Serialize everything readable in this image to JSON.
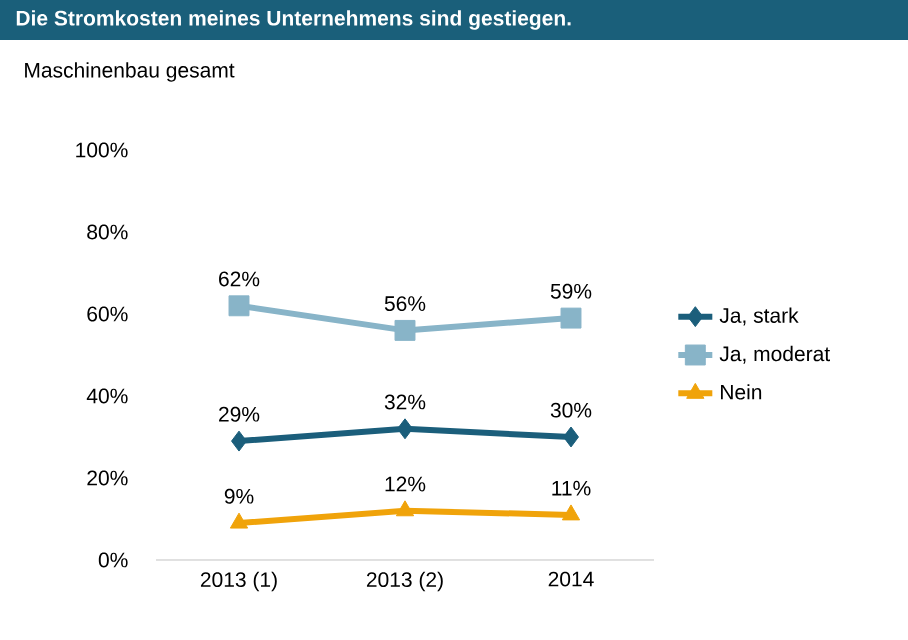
{
  "chart_data": {
    "type": "line",
    "title": "Die Stromkosten meines Unternehmens sind gestiegen.",
    "subtitle": "Maschinenbau gesamt",
    "categories": [
      "2013 (1)",
      "2013 (2)",
      "2014"
    ],
    "series": [
      {
        "name": "Ja, stark",
        "color": "#1b5e7b",
        "marker": "diamond",
        "values": [
          29,
          32,
          30
        ],
        "value_labels": [
          "29%",
          "32%",
          "30%"
        ]
      },
      {
        "name": "Ja, moderat",
        "color": "#88b4c8",
        "marker": "square",
        "values": [
          62,
          56,
          59
        ],
        "value_labels": [
          "62%",
          "56%",
          "59%"
        ]
      },
      {
        "name": "Nein",
        "color": "#f0a30a",
        "marker": "triangle",
        "values": [
          9,
          12,
          11
        ],
        "value_labels": [
          "9%",
          "12%",
          "11%"
        ]
      }
    ],
    "ylim": [
      0,
      100
    ],
    "yticks": [
      {
        "value": 0,
        "label": "0%"
      },
      {
        "value": 20,
        "label": "20%"
      },
      {
        "value": 40,
        "label": "40%"
      },
      {
        "value": 60,
        "label": "60%"
      },
      {
        "value": 80,
        "label": "80%"
      },
      {
        "value": 100,
        "label": "100%"
      }
    ],
    "legend": "right",
    "grid": false
  }
}
